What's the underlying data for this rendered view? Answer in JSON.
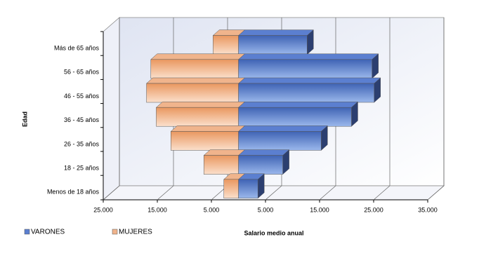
{
  "chart_data": {
    "type": "bar3d-pyramid",
    "categories": [
      "Más de 65 años",
      "56 - 65 años",
      "46 - 55 años",
      "36 - 45 años",
      "26 - 35 años",
      "18 - 25 años",
      "Menos de 18 años"
    ],
    "series": [
      {
        "name": "VARONES",
        "color": "#5b7fd0",
        "values": [
          12700,
          24700,
          25100,
          20900,
          15300,
          8200,
          3600
        ]
      },
      {
        "name": "MUJERES",
        "color": "#f0b48c",
        "values": [
          -4700,
          -16200,
          -17000,
          -15200,
          -12500,
          -6400,
          -2700
        ]
      }
    ],
    "xlim": [
      -25000,
      35000
    ],
    "xticks": [
      {
        "value": -25000,
        "label": "25.000"
      },
      {
        "value": -15000,
        "label": "15.000"
      },
      {
        "value": -5000,
        "label": "5.000"
      },
      {
        "value": 5000,
        "label": "5.000"
      },
      {
        "value": 15000,
        "label": "15.000"
      },
      {
        "value": 25000,
        "label": "25.000"
      },
      {
        "value": 35000,
        "label": "35.000"
      }
    ],
    "xlabel": "Salario medio anual",
    "ylabel": "Edad",
    "grid": true
  }
}
